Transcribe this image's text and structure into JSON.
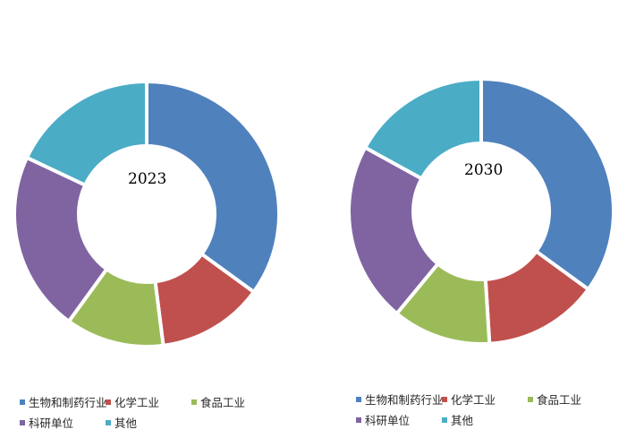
{
  "chart_data": [
    {
      "type": "pie",
      "center_label": "2023",
      "categories": [
        "生物和制药行业",
        "化学工业",
        "食品工业",
        "科研单位",
        "其他"
      ],
      "values": [
        35,
        13,
        12,
        22,
        18
      ],
      "colors": [
        "#4F81BD",
        "#C0504D",
        "#9BBB59",
        "#8064A2",
        "#4BACC6"
      ],
      "legend_position": "bottom"
    },
    {
      "type": "pie",
      "center_label": "2030",
      "categories": [
        "生物和制药行业",
        "化学工业",
        "食品工业",
        "科研单位",
        "其他"
      ],
      "values": [
        35,
        14,
        12,
        22,
        17
      ],
      "colors": [
        "#4F81BD",
        "#C0504D",
        "#9BBB59",
        "#8064A2",
        "#4BACC6"
      ],
      "legend_position": "bottom"
    }
  ]
}
